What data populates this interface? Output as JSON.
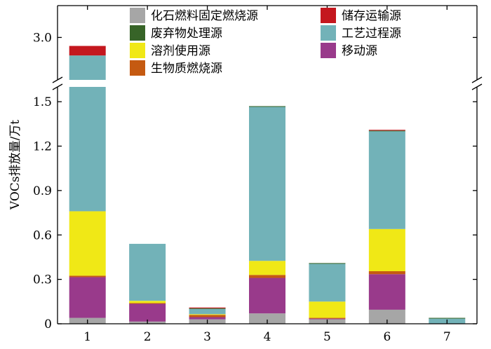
{
  "chart_data": {
    "type": "bar",
    "stacked": true,
    "broken_y_axis": true,
    "ylabel": "VOCs排放量/万t",
    "xlabel": "",
    "categories": [
      "1",
      "2",
      "3",
      "4",
      "5",
      "6",
      "7"
    ],
    "y_ticks_lower": [
      "0",
      "0.3",
      "0.6",
      "0.9",
      "1.2",
      "1.5"
    ],
    "y_ticks_upper": [
      "3.0"
    ],
    "ylim_lower": [
      0,
      1.6
    ],
    "ylim_upper": [
      2.6,
      3.3
    ],
    "legend_placement": "top",
    "series": [
      {
        "name": "化石燃料固定燃烧源",
        "color": "#a6a6a6",
        "values": [
          0.04,
          0.015,
          0.03,
          0.07,
          0.03,
          0.095,
          0.0
        ]
      },
      {
        "name": "移动源",
        "color": "#993a8b",
        "values": [
          0.275,
          0.12,
          0.015,
          0.24,
          0.005,
          0.24,
          0.0
        ]
      },
      {
        "name": "生物质燃烧源",
        "color": "#c55a11",
        "values": [
          0.01,
          0.005,
          0.015,
          0.02,
          0.005,
          0.02,
          0.0
        ]
      },
      {
        "name": "溶剂使用源",
        "color": "#f0e816",
        "values": [
          0.435,
          0.015,
          0.005,
          0.095,
          0.11,
          0.285,
          0.0
        ]
      },
      {
        "name": "工艺过程源",
        "color": "#72b2b8",
        "values": [
          2.07,
          0.385,
          0.035,
          1.04,
          0.255,
          0.66,
          0.035
        ]
      },
      {
        "name": "废弃物处理源",
        "color": "#376428",
        "values": [
          0.0,
          0.0,
          0.005,
          0.005,
          0.005,
          0.005,
          0.005
        ]
      },
      {
        "name": "储存运输源",
        "color": "#c4171e",
        "values": [
          0.09,
          0.0,
          0.005,
          0.0,
          0.0,
          0.005,
          0.0
        ]
      }
    ],
    "legend_order": [
      0,
      5,
      3,
      2,
      6,
      4,
      1
    ]
  }
}
